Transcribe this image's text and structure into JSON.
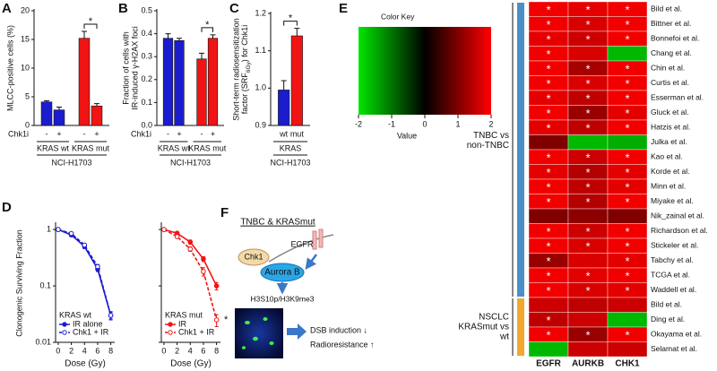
{
  "chart_data": [
    {
      "type": "bar",
      "panel_label": "A",
      "ylabel": [
        "MLCC-positive cells (%)"
      ],
      "ylim": [
        0,
        20
      ],
      "yticks": [
        0,
        5,
        10,
        15,
        20
      ],
      "row_label": "Chk1i",
      "categories": [
        "-",
        "+",
        "-",
        "+"
      ],
      "values": [
        4.1,
        2.7,
        15.2,
        3.4
      ],
      "errors": [
        0.2,
        0.5,
        1.2,
        0.4
      ],
      "colors": [
        "#1c1ccf",
        "#1c1ccf",
        "#f01414",
        "#f01414"
      ],
      "groups": [
        "KRAS wt",
        "KRAS mut"
      ],
      "cell_line": "NCI-H1703",
      "significance": "*"
    },
    {
      "type": "bar",
      "panel_label": "B",
      "ylabel": [
        "Fraction of cells with",
        "IR-induced γ-H2AX foci"
      ],
      "ylim": [
        0,
        0.5
      ],
      "yticks": [
        {
          "value": 0,
          "label": "0.0"
        },
        0.1,
        0.2,
        0.3,
        0.4,
        0.5
      ],
      "row_label": "Chk1i",
      "categories": [
        "-",
        "+",
        "-",
        "+"
      ],
      "values": [
        0.38,
        0.37,
        0.29,
        0.38
      ],
      "errors": [
        0.02,
        0.01,
        0.025,
        0.015
      ],
      "colors": [
        "#1c1ccf",
        "#1c1ccf",
        "#f01414",
        "#f01414"
      ],
      "groups": [
        "KRAS wt",
        "KRAS mut"
      ],
      "cell_line": "NCI-H1703",
      "significance": "*"
    },
    {
      "type": "bar",
      "panel_label": "C",
      "ylabel": [
        "Short-term radiosensitization",
        [
          "factor (SRF",
          "6Gy",
          ") for Chk1i"
        ]
      ],
      "ylim": [
        0.9,
        1.2
      ],
      "yticks": [
        0.9,
        {
          "value": 1.0,
          "label": "1.0"
        },
        1.1,
        1.2
      ],
      "categories": [
        "wt",
        "mut"
      ],
      "values": [
        0.995,
        1.14
      ],
      "errors": [
        0.025,
        0.02
      ],
      "colors": [
        "#1c1ccf",
        "#f01414"
      ],
      "groups": [
        "KRAS"
      ],
      "cell_line": "NCI-H1703",
      "significance": "*"
    },
    {
      "type": "line",
      "panel_label": "D",
      "ylabel": [
        "Clonogenic Surviving Fraction"
      ],
      "xlabel": "Dose (Gy)",
      "log_y": true,
      "xlim": [
        -0.4,
        8.6
      ],
      "xticks": [
        0,
        2,
        4,
        6,
        8
      ],
      "ylim": [
        0.01,
        1.25
      ],
      "yticks": [
        0.01,
        0.1,
        1
      ],
      "show_ytick_labels": true,
      "x": [
        0,
        2,
        4,
        6,
        8
      ],
      "legend_title": "KRAS wt",
      "series": [
        {
          "name": "IR alone",
          "color": "#1c1ccf",
          "dashed": false,
          "filled": true,
          "values": [
            1,
            0.8,
            0.5,
            0.2,
            0.03
          ],
          "errors": [
            0.02,
            0.05,
            0.04,
            0.02,
            0.005
          ]
        },
        {
          "name": "Chk1 + IR",
          "color": "#1c1ccf",
          "dashed": true,
          "filled": false,
          "values": [
            1,
            0.85,
            0.53,
            0.22,
            0.03
          ],
          "errors": [
            0.02,
            0.05,
            0.04,
            0.02,
            0.004
          ]
        }
      ]
    },
    {
      "type": "line",
      "xlabel": "Dose (Gy)",
      "log_y": true,
      "xlim": [
        -0.4,
        8.6
      ],
      "xticks": [
        0,
        2,
        4,
        6,
        8
      ],
      "ylim": [
        0.01,
        1.25
      ],
      "yticks": [
        0.01,
        0.1,
        1
      ],
      "show_ytick_labels": false,
      "x": [
        0,
        2,
        4,
        6,
        8
      ],
      "legend_title": "KRAS mut",
      "significance": "*",
      "series": [
        {
          "name": "IR",
          "color": "#f01414",
          "dashed": false,
          "filled": true,
          "values": [
            1,
            0.86,
            0.6,
            0.3,
            0.1
          ],
          "errors": [
            0.02,
            0.05,
            0.05,
            0.03,
            0.015
          ]
        },
        {
          "name": "Chk1 + IR",
          "color": "#f01414",
          "dashed": true,
          "filled": false,
          "values": [
            1,
            0.75,
            0.45,
            0.18,
            0.025
          ],
          "errors": [
            0.02,
            0.05,
            0.04,
            0.03,
            0.006
          ]
        }
      ]
    },
    {
      "type": "heatmap",
      "panel_label": "E",
      "title": "Color Key",
      "colorbar_label": "Value",
      "zlim": [
        -2,
        2
      ],
      "zticks": [
        -2,
        -1,
        0,
        1,
        2
      ],
      "columns": [
        "EGFR",
        "AURKB",
        "CHK1"
      ],
      "significance_label": "*",
      "groups": [
        {
          "label": [
            "TNBC vs",
            "non-TNBC"
          ],
          "color": "#4a90c8",
          "rows": [
            "Bild et al.",
            "Bittner et al.",
            "Bonnefoi et al.",
            "Chang et al.",
            "Chin et al.",
            "Curtis et al.",
            "Esserman et al.",
            "Gluck et al.",
            "Hatzis et al.",
            "Julka et al.",
            "Kao et al.",
            "Korde et al.",
            "Minn et al.",
            "Miyake et al.",
            "Nik_zainal et al.",
            "Richardson et al.",
            "Stickeler et al.",
            "Tabchy et al.",
            "TCGA et al.",
            "Waddell et al."
          ],
          "values": [
            [
              1.9,
              1.8,
              1.9
            ],
            [
              1.9,
              1.7,
              1.9
            ],
            [
              1.8,
              1.6,
              1.9
            ],
            [
              1.9,
              1.7,
              -1.6
            ],
            [
              1.9,
              1.3,
              1.9
            ],
            [
              1.9,
              1.7,
              1.9
            ],
            [
              1.8,
              1.5,
              1.9
            ],
            [
              1.9,
              1.2,
              1.8
            ],
            [
              1.8,
              1.5,
              1.9
            ],
            [
              1.0,
              -1.6,
              -1.5
            ],
            [
              1.9,
              1.6,
              1.9
            ],
            [
              1.8,
              1.4,
              1.8
            ],
            [
              1.9,
              1.5,
              1.8
            ],
            [
              1.9,
              1.4,
              1.9
            ],
            [
              1.0,
              1.1,
              1.0
            ],
            [
              1.9,
              1.6,
              1.9
            ],
            [
              1.9,
              1.7,
              1.9
            ],
            [
              1.2,
              1.7,
              1.8
            ],
            [
              1.9,
              1.8,
              1.9
            ],
            [
              1.9,
              1.7,
              1.8
            ]
          ],
          "significant": [
            [
              1,
              1,
              1
            ],
            [
              1,
              1,
              1
            ],
            [
              1,
              1,
              1
            ],
            [
              1,
              0,
              0
            ],
            [
              1,
              1,
              1
            ],
            [
              1,
              1,
              1
            ],
            [
              1,
              1,
              1
            ],
            [
              1,
              1,
              1
            ],
            [
              1,
              1,
              1
            ],
            [
              0,
              0,
              0
            ],
            [
              1,
              1,
              1
            ],
            [
              1,
              1,
              1
            ],
            [
              1,
              1,
              1
            ],
            [
              1,
              1,
              1
            ],
            [
              0,
              0,
              0
            ],
            [
              1,
              1,
              1
            ],
            [
              1,
              1,
              1
            ],
            [
              1,
              0,
              1
            ],
            [
              1,
              1,
              1
            ],
            [
              1,
              1,
              1
            ]
          ]
        },
        {
          "label": [
            "NSCLC",
            "KRASmut vs",
            "wt"
          ],
          "color": "#f0a830",
          "rows": [
            "Bild et al.",
            "Ding et al.",
            "Okayama et al.",
            "Selamat et al."
          ],
          "values": [
            [
              1.6,
              1.5,
              1.6
            ],
            [
              1.5,
              1.6,
              -1.6
            ],
            [
              1.9,
              1.2,
              1.9
            ],
            [
              -1.6,
              1.6,
              1.6
            ]
          ],
          "significant": [
            [
              0,
              0,
              0
            ],
            [
              1,
              0,
              0
            ],
            [
              1,
              1,
              1
            ],
            [
              0,
              0,
              0
            ]
          ]
        }
      ]
    }
  ],
  "diagram": {
    "panel_label": "F",
    "title": "TNBC & KRASmut",
    "chk1": "Chk1",
    "aurora": "Aurora B",
    "egfr": "EGFR",
    "marks": "H3S10p/H3K9me3",
    "outcomes": [
      "DSB induction ↓",
      "Radioresistance ↑"
    ]
  }
}
